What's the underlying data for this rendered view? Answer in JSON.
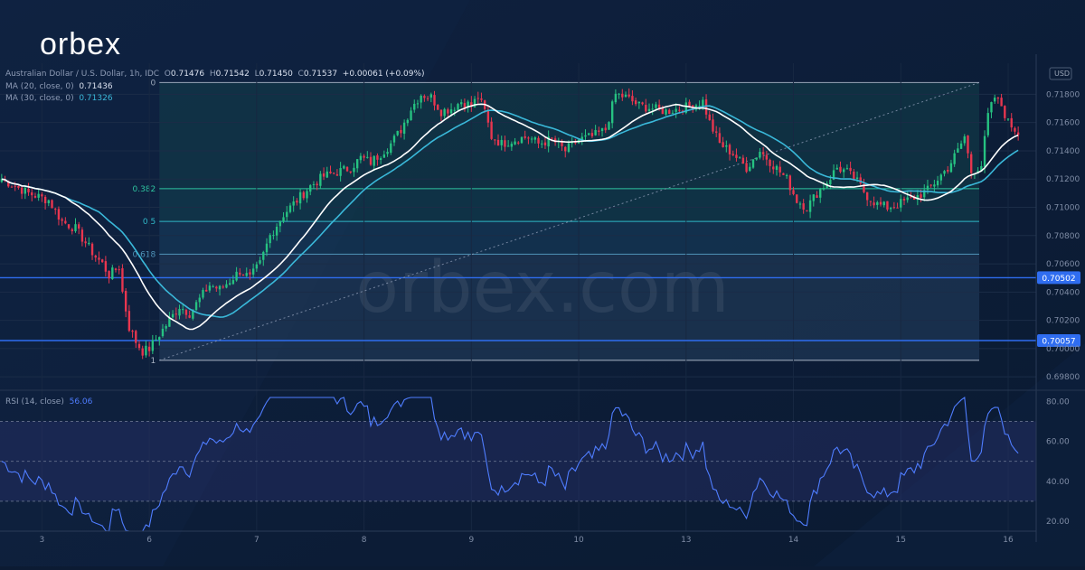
{
  "brand": {
    "logo_text": "orbex",
    "watermark": "orbex.com"
  },
  "legend": {
    "symbol": "Australian Dollar / U.S. Dollar, 1h, IDC",
    "open_label": "O",
    "open": "0.71476",
    "high_label": "H",
    "high": "0.71542",
    "low_label": "L",
    "low": "0.71450",
    "close_label": "C",
    "close": "0.71537",
    "change": "+0.00061 (+0.09%)",
    "ma20_label": "MA (20, close, 0)",
    "ma20_value": "0.71436",
    "ma30_label": "MA (30, close, 0)",
    "ma30_value": "0.71326"
  },
  "rsi_legend": {
    "label": "RSI (14, close)",
    "value": "56.06"
  },
  "currency_label": "USD",
  "colors": {
    "background": "#0c1b33",
    "up": "#26c281",
    "down": "#e8364f",
    "ma20": "#ffffff",
    "ma30": "#3ab8d9",
    "rsi": "#4f7dff",
    "level_line": "#2f6df0"
  },
  "chart_data": [
    {
      "type": "candlestick",
      "title": "",
      "x_tick_labels": [
        "3",
        "6",
        "7",
        "8",
        "9",
        "10",
        "13",
        "14",
        "15",
        "16"
      ],
      "y_ticks": [
        "0.71800",
        "0.71600",
        "0.71400",
        "0.71200",
        "0.71000",
        "0.70800",
        "0.70600",
        "0.70400",
        "0.70200",
        "0.70000",
        "0.69800"
      ],
      "ylim": [
        0.6975,
        0.7202
      ],
      "horizontal_levels": [
        {
          "label": "0.70502",
          "value": 0.70502
        },
        {
          "label": "0.70057",
          "value": 0.70057
        }
      ],
      "fibonacci": {
        "high": 0.71883,
        "low": 0.69917,
        "levels": [
          {
            "label": "0",
            "ratio": 0
          },
          {
            "label": "0.382",
            "ratio": 0.382
          },
          {
            "label": "0.5",
            "ratio": 0.5
          },
          {
            "label": "0.618",
            "ratio": 0.618
          },
          {
            "label": "1",
            "ratio": 1
          }
        ]
      },
      "close_anchors": [
        [
          0,
          0.712
        ],
        [
          8,
          0.711
        ],
        [
          14,
          0.7105
        ],
        [
          18,
          0.709
        ],
        [
          22,
          0.7085
        ],
        [
          25,
          0.7075
        ],
        [
          28,
          0.7065
        ],
        [
          30,
          0.706
        ],
        [
          32,
          0.7052
        ],
        [
          35,
          0.7058
        ],
        [
          36,
          0.704
        ],
        [
          38,
          0.7015
        ],
        [
          40,
          0.7005
        ],
        [
          42,
          0.6998
        ],
        [
          44,
          0.7
        ],
        [
          47,
          0.701
        ],
        [
          50,
          0.702
        ],
        [
          53,
          0.703
        ],
        [
          56,
          0.7025
        ],
        [
          59,
          0.7035
        ],
        [
          62,
          0.7045
        ],
        [
          65,
          0.7042
        ],
        [
          68,
          0.7048
        ],
        [
          71,
          0.7055
        ],
        [
          74,
          0.705
        ],
        [
          77,
          0.706
        ],
        [
          80,
          0.708
        ],
        [
          84,
          0.7095
        ],
        [
          88,
          0.7105
        ],
        [
          92,
          0.7115
        ],
        [
          96,
          0.7122
        ],
        [
          100,
          0.7125
        ],
        [
          104,
          0.7128
        ],
        [
          107,
          0.7135
        ],
        [
          110,
          0.7132
        ],
        [
          113,
          0.7138
        ],
        [
          116,
          0.7145
        ],
        [
          119,
          0.7155
        ],
        [
          122,
          0.717
        ],
        [
          125,
          0.718
        ],
        [
          128,
          0.7178
        ],
        [
          131,
          0.7168
        ],
        [
          134,
          0.717
        ],
        [
          137,
          0.7175
        ],
        [
          140,
          0.7172
        ],
        [
          142,
          0.7178
        ],
        [
          144,
          0.7168
        ],
        [
          146,
          0.715
        ],
        [
          149,
          0.7145
        ],
        [
          153,
          0.7148
        ],
        [
          157,
          0.715
        ],
        [
          160,
          0.7145
        ],
        [
          164,
          0.7148
        ],
        [
          168,
          0.714
        ],
        [
          172,
          0.7148
        ],
        [
          176,
          0.715
        ],
        [
          180,
          0.7155
        ],
        [
          183,
          0.718
        ],
        [
          186,
          0.7178
        ],
        [
          190,
          0.7172
        ],
        [
          194,
          0.717
        ],
        [
          198,
          0.7168
        ],
        [
          202,
          0.717
        ],
        [
          206,
          0.7172
        ],
        [
          209,
          0.7175
        ],
        [
          211,
          0.716
        ],
        [
          214,
          0.7145
        ],
        [
          218,
          0.7138
        ],
        [
          222,
          0.7128
        ],
        [
          226,
          0.714
        ],
        [
          230,
          0.713
        ],
        [
          234,
          0.712
        ],
        [
          237,
          0.7105
        ],
        [
          240,
          0.71
        ],
        [
          243,
          0.711
        ],
        [
          246,
          0.7118
        ],
        [
          249,
          0.7128
        ],
        [
          252,
          0.7125
        ],
        [
          255,
          0.7118
        ],
        [
          258,
          0.7108
        ],
        [
          261,
          0.7102
        ],
        [
          264,
          0.71
        ],
        [
          267,
          0.7102
        ],
        [
          270,
          0.7105
        ],
        [
          273,
          0.7108
        ],
        [
          276,
          0.7112
        ],
        [
          279,
          0.712
        ],
        [
          282,
          0.7128
        ],
        [
          285,
          0.714
        ],
        [
          287,
          0.715
        ],
        [
          289,
          0.7125
        ],
        [
          292,
          0.713
        ],
        [
          294,
          0.7165
        ],
        [
          296,
          0.7178
        ],
        [
          298,
          0.7172
        ],
        [
          300,
          0.716
        ],
        [
          303,
          0.7153
        ]
      ],
      "series": [
        {
          "name": "MA (20, close, 0)",
          "last": 0.71436
        },
        {
          "name": "MA (30, close, 0)",
          "last": 0.71326
        }
      ]
    },
    {
      "type": "line",
      "title": "RSI (14, close)",
      "y_ticks": [
        "80.00",
        "60.00",
        "40.00",
        "20.00"
      ],
      "ylim": [
        15,
        82
      ],
      "bands": [
        30,
        50,
        70
      ],
      "last": 56.06
    }
  ]
}
